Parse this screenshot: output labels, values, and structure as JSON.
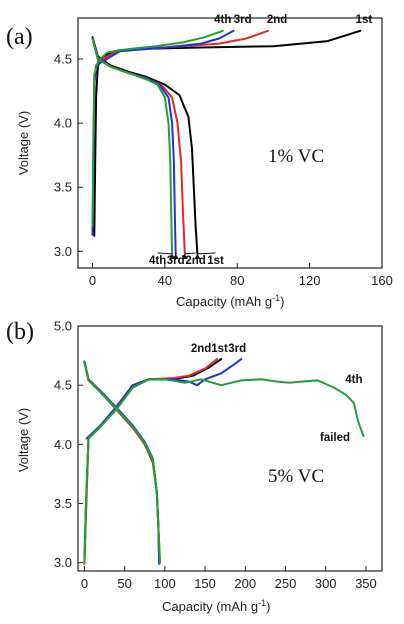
{
  "colors": {
    "1st": "#000000",
    "2nd": "#e8262a",
    "3rd": "#1e35d6",
    "4th": "#22a033"
  },
  "chart_data": [
    {
      "type": "line",
      "panel_label": "(a)",
      "annotation": "1% VC",
      "xlabel": "Capacity (mAh g",
      "xlabel_sup": "-1",
      "xlabel_close": ")",
      "ylabel": "Voltage (V)",
      "xlim": [
        -8,
        160
      ],
      "ylim": [
        2.87,
        4.82
      ],
      "xticks": [
        0,
        40,
        80,
        120,
        160
      ],
      "yticks": [
        3.0,
        3.5,
        4.0,
        4.5
      ],
      "ytick_labels": [
        "3.0",
        "3.5",
        "4.0",
        "4.5"
      ],
      "top_labels": [
        {
          "text": "4th",
          "x": 72,
          "y": 4.78
        },
        {
          "text": "3rd",
          "x": 83,
          "y": 4.78
        },
        {
          "text": "2nd",
          "x": 102,
          "y": 4.78
        },
        {
          "text": "1st",
          "x": 150,
          "y": 4.78
        }
      ],
      "bottom_labels": [
        {
          "text": "4th",
          "x": 36,
          "y": 2.93,
          "arrow_to": [
            44,
            2.98
          ]
        },
        {
          "text": "3rd",
          "x": 46,
          "y": 2.93,
          "arrow_to": [
            46,
            2.98
          ]
        },
        {
          "text": "2nd",
          "x": 57,
          "y": 2.93,
          "arrow_to": [
            51,
            2.98
          ]
        },
        {
          "text": "1st",
          "x": 68,
          "y": 2.93,
          "arrow_to": [
            58,
            2.98
          ]
        }
      ],
      "series": [
        {
          "name": "1st",
          "color_key": "1st",
          "discharge": [
            [
              0,
              4.67
            ],
            [
              3,
              4.52
            ],
            [
              10,
              4.45
            ],
            [
              20,
              4.4
            ],
            [
              30,
              4.36
            ],
            [
              40,
              4.3
            ],
            [
              48,
              4.22
            ],
            [
              53,
              4.05
            ],
            [
              55,
              3.8
            ],
            [
              56,
              3.5
            ],
            [
              57,
              3.2
            ],
            [
              58,
              2.98
            ]
          ],
          "charge": [
            [
              1,
              3.12
            ],
            [
              1.5,
              3.7
            ],
            [
              2,
              4.2
            ],
            [
              3,
              4.45
            ],
            [
              6,
              4.52
            ],
            [
              12,
              4.56
            ],
            [
              30,
              4.58
            ],
            [
              60,
              4.59
            ],
            [
              100,
              4.6
            ],
            [
              130,
              4.64
            ],
            [
              148,
              4.72
            ]
          ]
        },
        {
          "name": "2nd",
          "color_key": "2nd",
          "discharge": [
            [
              0,
              4.66
            ],
            [
              3,
              4.5
            ],
            [
              10,
              4.44
            ],
            [
              20,
              4.39
            ],
            [
              30,
              4.35
            ],
            [
              38,
              4.3
            ],
            [
              44,
              4.2
            ],
            [
              47,
              4.0
            ],
            [
              49,
              3.7
            ],
            [
              50,
              3.3
            ],
            [
              51,
              2.98
            ]
          ],
          "charge": [
            [
              0,
              3.15
            ],
            [
              0.5,
              3.8
            ],
            [
              1,
              4.3
            ],
            [
              2,
              4.45
            ],
            [
              8,
              4.52
            ],
            [
              15,
              4.57
            ],
            [
              40,
              4.59
            ],
            [
              70,
              4.62
            ],
            [
              85,
              4.66
            ],
            [
              97,
              4.72
            ]
          ]
        },
        {
          "name": "3rd",
          "color_key": "3rd",
          "discharge": [
            [
              0,
              4.66
            ],
            [
              3,
              4.5
            ],
            [
              10,
              4.44
            ],
            [
              20,
              4.39
            ],
            [
              30,
              4.35
            ],
            [
              37,
              4.3
            ],
            [
              42,
              4.2
            ],
            [
              44,
              4.0
            ],
            [
              45,
              3.7
            ],
            [
              45.5,
              3.3
            ],
            [
              46,
              2.98
            ]
          ],
          "charge": [
            [
              0,
              3.13
            ],
            [
              0.5,
              3.7
            ],
            [
              1,
              4.3
            ],
            [
              2,
              4.45
            ],
            [
              8,
              4.5
            ],
            [
              15,
              4.56
            ],
            [
              40,
              4.59
            ],
            [
              60,
              4.62
            ],
            [
              70,
              4.66
            ],
            [
              78,
              4.72
            ]
          ]
        },
        {
          "name": "4th",
          "color_key": "4th",
          "discharge": [
            [
              0,
              4.66
            ],
            [
              3,
              4.5
            ],
            [
              10,
              4.44
            ],
            [
              20,
              4.39
            ],
            [
              30,
              4.34
            ],
            [
              36,
              4.3
            ],
            [
              40,
              4.2
            ],
            [
              42,
              4.0
            ],
            [
              43,
              3.7
            ],
            [
              43.5,
              3.3
            ],
            [
              44,
              2.98
            ]
          ],
          "charge": [
            [
              0,
              3.2
            ],
            [
              0.5,
              3.9
            ],
            [
              1,
              4.38
            ],
            [
              3,
              4.48
            ],
            [
              8,
              4.55
            ],
            [
              15,
              4.57
            ],
            [
              35,
              4.6
            ],
            [
              50,
              4.63
            ],
            [
              62,
              4.67
            ],
            [
              72,
              4.72
            ]
          ]
        }
      ]
    },
    {
      "type": "line",
      "panel_label": "(b)",
      "annotation": "5% VC",
      "failed_label": "failed",
      "xlabel": "Capacity (mAh g",
      "xlabel_sup": "-1",
      "xlabel_close": ")",
      "ylabel": "Voltage (V)",
      "xlim": [
        -8,
        370
      ],
      "ylim": [
        2.93,
        5.0
      ],
      "xticks": [
        0,
        50,
        100,
        150,
        200,
        250,
        300,
        350
      ],
      "yticks": [
        3.0,
        3.5,
        4.0,
        4.5,
        5.0
      ],
      "ytick_labels": [
        "3.0",
        "3.5",
        "4.0",
        "4.5",
        "5.0"
      ],
      "top_labels": [
        {
          "text": "2nd",
          "x": 145,
          "y": 4.78
        },
        {
          "text": "1st",
          "x": 168,
          "y": 4.78
        },
        {
          "text": "3rd",
          "x": 190,
          "y": 4.78
        },
        {
          "text": "4th",
          "x": 335,
          "y": 4.52
        }
      ],
      "series": [
        {
          "name": "1st",
          "color_key": "1st",
          "discharge": [
            [
              0,
              4.7
            ],
            [
              5,
              4.55
            ],
            [
              20,
              4.45
            ],
            [
              40,
              4.3
            ],
            [
              60,
              4.15
            ],
            [
              75,
              4.0
            ],
            [
              85,
              3.85
            ],
            [
              90,
              3.6
            ],
            [
              92,
              3.3
            ],
            [
              93,
              3.0
            ]
          ],
          "charge": [
            [
              0,
              3.0
            ],
            [
              2,
              3.5
            ],
            [
              5,
              4.05
            ],
            [
              20,
              4.15
            ],
            [
              40,
              4.3
            ],
            [
              60,
              4.48
            ],
            [
              80,
              4.55
            ],
            [
              110,
              4.55
            ],
            [
              135,
              4.58
            ],
            [
              155,
              4.65
            ],
            [
              170,
              4.72
            ]
          ]
        },
        {
          "name": "2nd",
          "color_key": "2nd",
          "discharge": [
            [
              0,
              4.69
            ],
            [
              5,
              4.54
            ],
            [
              20,
              4.44
            ],
            [
              40,
              4.29
            ],
            [
              60,
              4.14
            ],
            [
              75,
              4.0
            ],
            [
              85,
              3.86
            ],
            [
              90,
              3.6
            ],
            [
              92,
              3.3
            ],
            [
              94,
              3.0
            ]
          ],
          "charge": [
            [
              0,
              2.99
            ],
            [
              3,
              3.6
            ],
            [
              5,
              4.05
            ],
            [
              20,
              4.16
            ],
            [
              40,
              4.32
            ],
            [
              60,
              4.5
            ],
            [
              80,
              4.55
            ],
            [
              110,
              4.56
            ],
            [
              130,
              4.58
            ],
            [
              150,
              4.64
            ],
            [
              165,
              4.72
            ]
          ]
        },
        {
          "name": "3rd",
          "color_key": "3rd",
          "discharge": [
            [
              0,
              4.7
            ],
            [
              5,
              4.55
            ],
            [
              20,
              4.45
            ],
            [
              40,
              4.31
            ],
            [
              60,
              4.16
            ],
            [
              75,
              4.02
            ],
            [
              85,
              3.88
            ],
            [
              90,
              3.6
            ],
            [
              92,
              3.3
            ],
            [
              93,
              2.99
            ]
          ],
          "charge": [
            [
              3,
              4.05
            ],
            [
              20,
              4.16
            ],
            [
              40,
              4.32
            ],
            [
              60,
              4.5
            ],
            [
              80,
              4.55
            ],
            [
              110,
              4.55
            ],
            [
              130,
              4.53
            ],
            [
              140,
              4.5
            ],
            [
              150,
              4.55
            ],
            [
              170,
              4.6
            ],
            [
              185,
              4.67
            ],
            [
              195,
              4.72
            ]
          ]
        },
        {
          "name": "4th",
          "color_key": "4th",
          "discharge": [
            [
              0,
              4.69
            ],
            [
              5,
              4.55
            ],
            [
              20,
              4.44
            ],
            [
              40,
              4.3
            ],
            [
              60,
              4.15
            ],
            [
              75,
              4.01
            ],
            [
              85,
              3.87
            ],
            [
              90,
              3.6
            ],
            [
              92,
              3.3
            ],
            [
              94,
              3.0
            ]
          ],
          "charge": [
            [
              0,
              3.0
            ],
            [
              2,
              3.5
            ],
            [
              5,
              4.05
            ],
            [
              20,
              4.15
            ],
            [
              40,
              4.3
            ],
            [
              60,
              4.48
            ],
            [
              80,
              4.55
            ],
            [
              100,
              4.55
            ],
            [
              125,
              4.52
            ],
            [
              145,
              4.55
            ],
            [
              170,
              4.5
            ],
            [
              195,
              4.54
            ],
            [
              220,
              4.55
            ],
            [
              240,
              4.53
            ],
            [
              255,
              4.52
            ],
            [
              270,
              4.53
            ],
            [
              290,
              4.54
            ],
            [
              310,
              4.48
            ],
            [
              325,
              4.42
            ],
            [
              335,
              4.35
            ],
            [
              340,
              4.2
            ],
            [
              347,
              4.07
            ]
          ]
        }
      ]
    }
  ]
}
